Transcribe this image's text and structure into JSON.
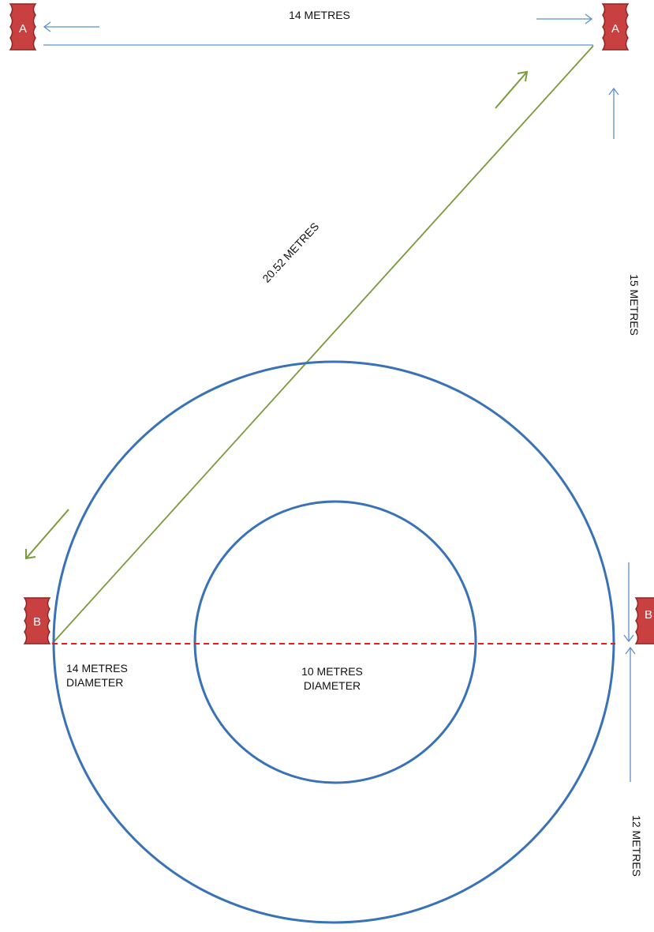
{
  "labels": {
    "top_distance": "14 METRES",
    "diagonal_distance": "20.52 METRES",
    "right_upper_distance": "15 METRES",
    "right_lower_distance": "12 METRES",
    "outer_circle_line1": "14 METRES",
    "outer_circle_line2": "DIAMETER",
    "inner_circle_line1": "10 METRES",
    "inner_circle_line2": "DIAMETER"
  },
  "markers": {
    "top_left": "A",
    "top_right": "A",
    "left": "B",
    "right": "B"
  },
  "colors": {
    "dimension_line": "#5b8fd0",
    "circle": "#3a72b8",
    "diagonal": "#7a9a3c",
    "diameter_dash": "#e02020",
    "marker_fill": "#c8403f",
    "marker_stroke": "#8e2624"
  }
}
